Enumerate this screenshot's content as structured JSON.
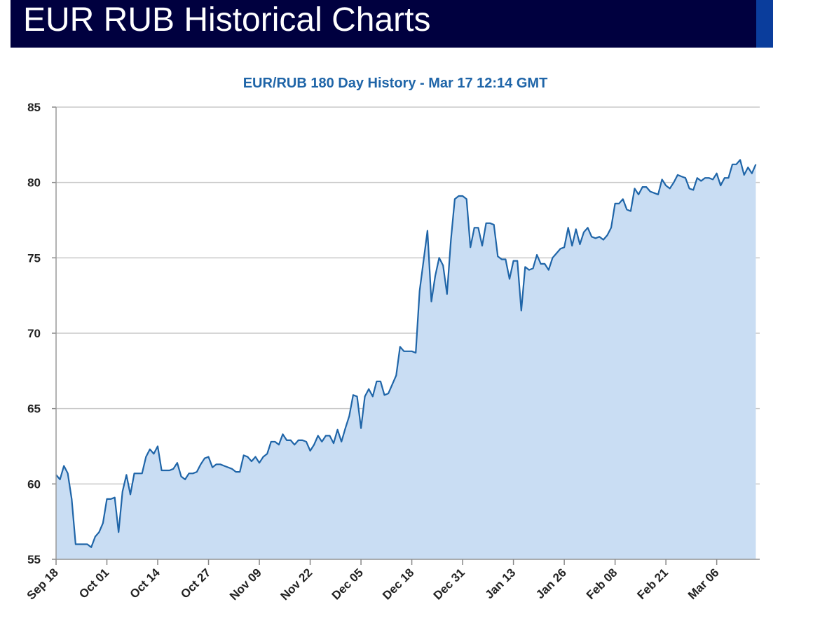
{
  "header": {
    "title": "EUR RUB Historical Charts"
  },
  "colors": {
    "header_bg": "#00003f",
    "header_accent": "#0a3d9c",
    "line": "#1f65a8",
    "fill": "#c9ddf3",
    "grid": "#c8c8c8",
    "title": "#1f65a8"
  },
  "chart_data": {
    "type": "area",
    "title": "EUR/RUB 180 Day History - Mar 17 12:14 GMT",
    "xlabel": "",
    "ylabel": "",
    "ylim": [
      55,
      85
    ],
    "yticks": [
      "55",
      "60",
      "65",
      "70",
      "75",
      "80",
      "85"
    ],
    "x_tick_labels": [
      "Sep 18",
      "Oct 01",
      "Oct 14",
      "Oct 27",
      "Nov 09",
      "Nov 22",
      "Dec 05",
      "Dec 18",
      "Dec 31",
      "Jan 13",
      "Jan 26",
      "Feb 08",
      "Feb 21",
      "Mar 06"
    ],
    "x_start": "Sep 18",
    "x_end": "Mar 17",
    "grid": true,
    "legend": "none",
    "series": [
      {
        "points": [
          [
            "Sep 18",
            60.6
          ],
          [
            "Sep 19",
            60.3
          ],
          [
            "Sep 20",
            61.2
          ],
          [
            "Sep 21",
            60.7
          ],
          [
            "Sep 22",
            59.0
          ],
          [
            "Sep 23",
            56.0
          ],
          [
            "Sep 24",
            56.0
          ],
          [
            "Sep 25",
            56.0
          ],
          [
            "Sep 26",
            56.0
          ],
          [
            "Sep 27",
            55.8
          ],
          [
            "Sep 28",
            56.5
          ],
          [
            "Sep 29",
            56.8
          ],
          [
            "Sep 30",
            57.4
          ],
          [
            "Oct 01",
            59.0
          ],
          [
            "Oct 02",
            59.0
          ],
          [
            "Oct 03",
            59.1
          ],
          [
            "Oct 04",
            56.8
          ],
          [
            "Oct 05",
            59.5
          ],
          [
            "Oct 06",
            60.6
          ],
          [
            "Oct 07",
            59.3
          ],
          [
            "Oct 08",
            60.7
          ],
          [
            "Oct 09",
            60.7
          ],
          [
            "Oct 10",
            60.7
          ],
          [
            "Oct 11",
            61.8
          ],
          [
            "Oct 12",
            62.3
          ],
          [
            "Oct 13",
            62.0
          ],
          [
            "Oct 14",
            62.5
          ],
          [
            "Oct 15",
            60.9
          ],
          [
            "Oct 16",
            60.9
          ],
          [
            "Oct 17",
            60.9
          ],
          [
            "Oct 18",
            61.0
          ],
          [
            "Oct 19",
            61.4
          ],
          [
            "Oct 20",
            60.5
          ],
          [
            "Oct 21",
            60.3
          ],
          [
            "Oct 22",
            60.7
          ],
          [
            "Oct 23",
            60.7
          ],
          [
            "Oct 24",
            60.8
          ],
          [
            "Oct 25",
            61.3
          ],
          [
            "Oct 26",
            61.7
          ],
          [
            "Oct 27",
            61.8
          ],
          [
            "Oct 28",
            61.1
          ],
          [
            "Oct 29",
            61.3
          ],
          [
            "Oct 30",
            61.3
          ],
          [
            "Oct 31",
            61.2
          ],
          [
            "Nov 01",
            61.1
          ],
          [
            "Nov 02",
            61.0
          ],
          [
            "Nov 03",
            60.8
          ],
          [
            "Nov 04",
            60.8
          ],
          [
            "Nov 05",
            61.9
          ],
          [
            "Nov 06",
            61.8
          ],
          [
            "Nov 07",
            61.5
          ],
          [
            "Nov 08",
            61.8
          ],
          [
            "Nov 09",
            61.4
          ],
          [
            "Nov 10",
            61.8
          ],
          [
            "Nov 11",
            62.0
          ],
          [
            "Nov 12",
            62.8
          ],
          [
            "Nov 13",
            62.8
          ],
          [
            "Nov 14",
            62.6
          ],
          [
            "Nov 15",
            63.3
          ],
          [
            "Nov 16",
            62.9
          ],
          [
            "Nov 17",
            62.9
          ],
          [
            "Nov 18",
            62.6
          ],
          [
            "Nov 19",
            62.9
          ],
          [
            "Nov 20",
            62.9
          ],
          [
            "Nov 21",
            62.8
          ],
          [
            "Nov 22",
            62.2
          ],
          [
            "Nov 23",
            62.6
          ],
          [
            "Nov 24",
            63.2
          ],
          [
            "Nov 25",
            62.8
          ],
          [
            "Nov 26",
            63.2
          ],
          [
            "Nov 27",
            63.2
          ],
          [
            "Nov 28",
            62.7
          ],
          [
            "Nov 29",
            63.6
          ],
          [
            "Nov 30",
            62.8
          ],
          [
            "Dec 01",
            63.7
          ],
          [
            "Dec 02",
            64.5
          ],
          [
            "Dec 03",
            65.9
          ],
          [
            "Dec 04",
            65.8
          ],
          [
            "Dec 05",
            63.7
          ],
          [
            "Dec 06",
            65.8
          ],
          [
            "Dec 07",
            66.3
          ],
          [
            "Dec 08",
            65.8
          ],
          [
            "Dec 09",
            66.8
          ],
          [
            "Dec 10",
            66.8
          ],
          [
            "Dec 11",
            65.9
          ],
          [
            "Dec 12",
            66.0
          ],
          [
            "Dec 13",
            66.6
          ],
          [
            "Dec 14",
            67.2
          ],
          [
            "Dec 15",
            69.1
          ],
          [
            "Dec 16",
            68.8
          ],
          [
            "Dec 17",
            68.8
          ],
          [
            "Dec 18",
            68.8
          ],
          [
            "Dec 19",
            68.7
          ],
          [
            "Dec 20",
            72.8
          ],
          [
            "Dec 21",
            74.8
          ],
          [
            "Dec 22",
            76.8
          ],
          [
            "Dec 23",
            72.1
          ],
          [
            "Dec 24",
            73.8
          ],
          [
            "Dec 25",
            75.0
          ],
          [
            "Dec 26",
            74.5
          ],
          [
            "Dec 27",
            72.6
          ],
          [
            "Dec 28",
            76.2
          ],
          [
            "Dec 29",
            78.9
          ],
          [
            "Dec 30",
            79.1
          ],
          [
            "Dec 31",
            79.1
          ],
          [
            "Jan 01",
            78.9
          ],
          [
            "Jan 02",
            75.7
          ],
          [
            "Jan 03",
            77.0
          ],
          [
            "Jan 04",
            77.0
          ],
          [
            "Jan 05",
            75.8
          ],
          [
            "Jan 06",
            77.3
          ],
          [
            "Jan 07",
            77.3
          ],
          [
            "Jan 08",
            77.2
          ],
          [
            "Jan 09",
            75.1
          ],
          [
            "Jan 10",
            74.9
          ],
          [
            "Jan 11",
            74.9
          ],
          [
            "Jan 12",
            73.6
          ],
          [
            "Jan 13",
            74.8
          ],
          [
            "Jan 14",
            74.8
          ],
          [
            "Jan 15",
            71.5
          ],
          [
            "Jan 16",
            74.4
          ],
          [
            "Jan 17",
            74.2
          ],
          [
            "Jan 18",
            74.3
          ],
          [
            "Jan 19",
            75.2
          ],
          [
            "Jan 20",
            74.6
          ],
          [
            "Jan 21",
            74.6
          ],
          [
            "Jan 22",
            74.2
          ],
          [
            "Jan 23",
            75.0
          ],
          [
            "Jan 24",
            75.3
          ],
          [
            "Jan 25",
            75.6
          ],
          [
            "Jan 26",
            75.7
          ],
          [
            "Jan 27",
            77.0
          ],
          [
            "Jan 28",
            75.8
          ],
          [
            "Jan 29",
            76.9
          ],
          [
            "Jan 30",
            75.9
          ],
          [
            "Jan 31",
            76.7
          ],
          [
            "Feb 01",
            77.0
          ],
          [
            "Feb 02",
            76.4
          ],
          [
            "Feb 03",
            76.3
          ],
          [
            "Feb 04",
            76.4
          ],
          [
            "Feb 05",
            76.2
          ],
          [
            "Feb 06",
            76.5
          ],
          [
            "Feb 07",
            77.0
          ],
          [
            "Feb 08",
            78.6
          ],
          [
            "Feb 09",
            78.6
          ],
          [
            "Feb 10",
            78.9
          ],
          [
            "Feb 11",
            78.2
          ],
          [
            "Feb 12",
            78.1
          ],
          [
            "Feb 13",
            79.6
          ],
          [
            "Feb 14",
            79.2
          ],
          [
            "Feb 15",
            79.7
          ],
          [
            "Feb 16",
            79.7
          ],
          [
            "Feb 17",
            79.4
          ],
          [
            "Feb 18",
            79.3
          ],
          [
            "Feb 19",
            79.2
          ],
          [
            "Feb 20",
            80.2
          ],
          [
            "Feb 21",
            79.8
          ],
          [
            "Feb 22",
            79.6
          ],
          [
            "Feb 23",
            80.0
          ],
          [
            "Feb 24",
            80.5
          ],
          [
            "Feb 25",
            80.4
          ],
          [
            "Feb 26",
            80.3
          ],
          [
            "Feb 27",
            79.6
          ],
          [
            "Feb 28",
            79.5
          ],
          [
            "Mar 01",
            80.3
          ],
          [
            "Mar 02",
            80.1
          ],
          [
            "Mar 03",
            80.3
          ],
          [
            "Mar 04",
            80.3
          ],
          [
            "Mar 05",
            80.2
          ],
          [
            "Mar 06",
            80.6
          ],
          [
            "Mar 07",
            79.8
          ],
          [
            "Mar 08",
            80.3
          ],
          [
            "Mar 09",
            80.3
          ],
          [
            "Mar 10",
            81.2
          ],
          [
            "Mar 11",
            81.2
          ],
          [
            "Mar 12",
            81.5
          ],
          [
            "Mar 13",
            80.5
          ],
          [
            "Mar 14",
            81.0
          ],
          [
            "Mar 15",
            80.6
          ],
          [
            "Mar 16",
            81.2
          ]
        ]
      }
    ]
  }
}
